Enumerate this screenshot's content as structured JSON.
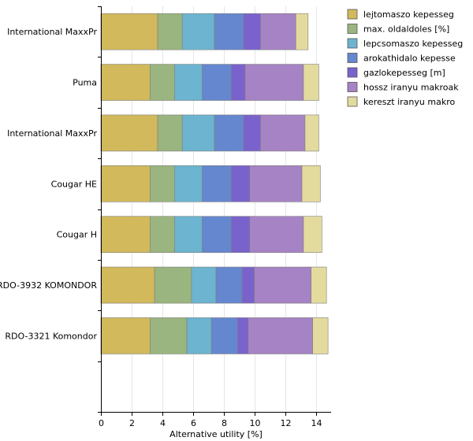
{
  "chart_data": {
    "type": "bar",
    "orientation": "horizontal",
    "stacked": true,
    "title": "",
    "xlabel": "Alternative utility [%]",
    "ylabel": "",
    "xlim": [
      0,
      15
    ],
    "x_ticks": [
      0,
      2,
      4,
      6,
      8,
      10,
      12,
      14
    ],
    "grid": true,
    "legend_position": "top-right",
    "categories": [
      "International MaxxPr",
      "Puma",
      "International MaxxPr",
      "Cougar HE",
      "Cougar H",
      "RDO-3932 KOMONDOR",
      "RDO-3321 Komondor"
    ],
    "series": [
      {
        "name": "lejtomaszo kepesseg",
        "color": "#d1b95c",
        "values": [
          3.7,
          3.2,
          3.7,
          3.2,
          3.2,
          3.5,
          3.2
        ]
      },
      {
        "name": "max. oldaldoles [%]",
        "color": "#9ab57f",
        "values": [
          1.6,
          1.6,
          1.6,
          1.6,
          1.6,
          2.4,
          2.4
        ]
      },
      {
        "name": "lepcsomaszo kepesseg",
        "color": "#6cb4cf",
        "values": [
          2.1,
          1.8,
          2.1,
          1.8,
          1.8,
          1.6,
          1.6
        ]
      },
      {
        "name": "arokathidalo kepesse",
        "color": "#6587cf",
        "values": [
          1.9,
          1.9,
          1.9,
          1.9,
          1.9,
          1.7,
          1.7
        ]
      },
      {
        "name": "gazlokepesseg [m]",
        "color": "#7a62cc",
        "values": [
          1.1,
          0.9,
          1.1,
          1.2,
          1.2,
          0.8,
          0.7
        ]
      },
      {
        "name": "hossz iranyu makroak",
        "color": "#a683c4",
        "values": [
          2.3,
          3.8,
          2.9,
          3.4,
          3.5,
          3.7,
          4.2
        ]
      },
      {
        "name": "kereszt iranyu makro",
        "color": "#e3da9e",
        "values": [
          0.8,
          1.0,
          0.9,
          1.2,
          1.2,
          1.0,
          1.0
        ]
      }
    ]
  }
}
